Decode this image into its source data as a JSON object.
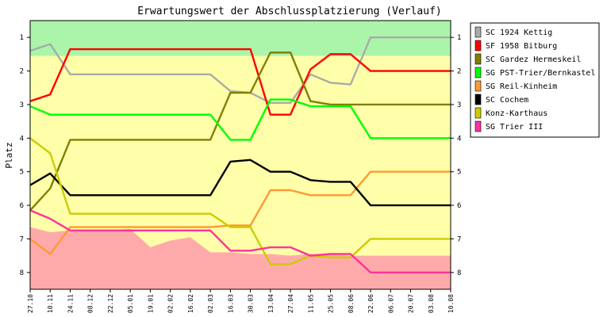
{
  "chart_data": {
    "type": "line",
    "title": "Erwartungswert der Abschlussplatzierung (Verlauf)",
    "ylabel": "Platz",
    "xlabel": "",
    "ylim": [
      8.5,
      0.5
    ],
    "y_ticks": [
      1,
      2,
      3,
      4,
      5,
      6,
      7,
      8
    ],
    "categories": [
      "27.10",
      "10.11",
      "24.11",
      "08.12",
      "22.12",
      "05.01",
      "19.01",
      "02.02",
      "16.02",
      "02.03",
      "16.03",
      "30.03",
      "13.04",
      "27.04",
      "11.05",
      "25.05",
      "08.06",
      "22.06",
      "06.07",
      "20.07",
      "03.08",
      "10.08"
    ],
    "zones": {
      "promotion_color": "#aaf5aa",
      "middle_color": "#ffffaa",
      "relegation_color": "#ffaaaa",
      "promotion_lower": [
        1.55,
        1.55,
        1.55,
        1.55,
        1.55,
        1.55,
        1.55,
        1.55,
        1.55,
        1.55,
        1.55,
        1.55,
        1.55,
        1.55,
        1.55,
        1.55,
        1.55,
        1.55,
        1.55,
        1.55,
        1.55,
        1.55
      ],
      "relegation_upper": [
        6.65,
        6.8,
        6.75,
        6.75,
        6.75,
        6.7,
        7.25,
        7.05,
        6.95,
        7.4,
        7.4,
        7.45,
        7.45,
        7.5,
        7.45,
        7.45,
        7.5,
        7.5,
        7.5,
        7.5,
        7.5,
        7.5
      ]
    },
    "series": [
      {
        "name": "SC 1924 Kettig",
        "color": "#aaaaaa",
        "values": [
          1.4,
          1.2,
          2.1,
          2.1,
          2.1,
          2.1,
          2.1,
          2.1,
          2.1,
          2.1,
          2.6,
          2.65,
          2.95,
          2.95,
          2.1,
          2.35,
          2.4,
          1.0,
          1.0,
          1.0,
          1.0,
          1.0
        ]
      },
      {
        "name": "SF 1958 Bitburg",
        "color": "#ff0000",
        "values": [
          2.9,
          2.7,
          1.35,
          1.35,
          1.35,
          1.35,
          1.35,
          1.35,
          1.35,
          1.35,
          1.35,
          1.35,
          3.3,
          3.3,
          1.95,
          1.5,
          1.5,
          2.0,
          2.0,
          2.0,
          2.0,
          2.0
        ]
      },
      {
        "name": "SC Gardez Hermeskeil",
        "color": "#808000",
        "values": [
          6.15,
          5.5,
          4.05,
          4.05,
          4.05,
          4.05,
          4.05,
          4.05,
          4.05,
          4.05,
          2.65,
          2.65,
          1.45,
          1.45,
          2.9,
          3.0,
          3.0,
          3.0,
          3.0,
          3.0,
          3.0,
          3.0
        ]
      },
      {
        "name": "SG PST-Trier/Bernkastel",
        "color": "#00ff00",
        "values": [
          3.05,
          3.3,
          3.3,
          3.3,
          3.3,
          3.3,
          3.3,
          3.3,
          3.3,
          3.3,
          4.05,
          4.05,
          2.85,
          2.85,
          3.05,
          3.05,
          3.05,
          4.0,
          4.0,
          4.0,
          4.0,
          4.0
        ]
      },
      {
        "name": "SG Reil-Kinheim",
        "color": "#ff9933",
        "values": [
          7.0,
          7.45,
          6.65,
          6.65,
          6.65,
          6.65,
          6.65,
          6.65,
          6.65,
          6.65,
          6.6,
          6.6,
          5.55,
          5.55,
          5.7,
          5.7,
          5.7,
          5.0,
          5.0,
          5.0,
          5.0,
          5.0
        ]
      },
      {
        "name": "SC Cochem",
        "color": "#000000",
        "values": [
          5.4,
          5.05,
          5.7,
          5.7,
          5.7,
          5.7,
          5.7,
          5.7,
          5.7,
          5.7,
          4.7,
          4.65,
          5.0,
          5.0,
          5.25,
          5.3,
          5.3,
          6.0,
          6.0,
          6.0,
          6.0,
          6.0
        ]
      },
      {
        "name": "Konz-Karthaus",
        "color": "#cccc00",
        "values": [
          4.0,
          4.45,
          6.25,
          6.25,
          6.25,
          6.25,
          6.25,
          6.25,
          6.25,
          6.25,
          6.65,
          6.65,
          7.75,
          7.75,
          7.5,
          7.55,
          7.55,
          7.0,
          7.0,
          7.0,
          7.0,
          7.0
        ]
      },
      {
        "name": "SG Trier III",
        "color": "#ff3399",
        "values": [
          6.15,
          6.4,
          6.75,
          6.75,
          6.75,
          6.75,
          6.75,
          6.75,
          6.75,
          6.75,
          7.35,
          7.35,
          7.25,
          7.25,
          7.5,
          7.45,
          7.45,
          8.0,
          8.0,
          8.0,
          8.0,
          8.0
        ]
      }
    ],
    "legend_position": "right",
    "grid": false
  }
}
